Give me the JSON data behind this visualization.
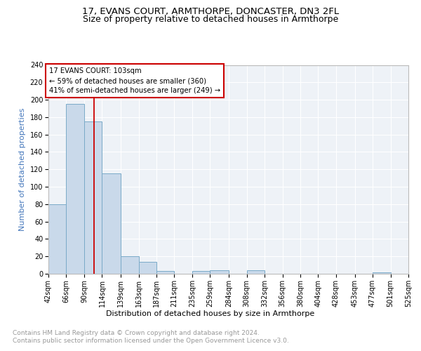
{
  "title": "17, EVANS COURT, ARMTHORPE, DONCASTER, DN3 2FL",
  "subtitle": "Size of property relative to detached houses in Armthorpe",
  "xlabel": "Distribution of detached houses by size in Armthorpe",
  "ylabel": "Number of detached properties",
  "property_size": 103,
  "bin_labels": [
    "42sqm",
    "66sqm",
    "90sqm",
    "114sqm",
    "139sqm",
    "163sqm",
    "187sqm",
    "211sqm",
    "235sqm",
    "259sqm",
    "284sqm",
    "308sqm",
    "332sqm",
    "356sqm",
    "380sqm",
    "404sqm",
    "428sqm",
    "453sqm",
    "477sqm",
    "501sqm",
    "525sqm"
  ],
  "bin_edges": [
    42,
    66,
    90,
    114,
    139,
    163,
    187,
    211,
    235,
    259,
    284,
    308,
    332,
    356,
    380,
    404,
    428,
    453,
    477,
    501,
    525
  ],
  "bar_heights": [
    80,
    195,
    175,
    115,
    20,
    14,
    3,
    0,
    3,
    4,
    0,
    4,
    0,
    0,
    0,
    0,
    0,
    0,
    2,
    0
  ],
  "bar_color": "#c9d9ea",
  "bar_edge_color": "#7aaac8",
  "annotation_title": "17 EVANS COURT: 103sqm",
  "annotation_line1": "← 59% of detached houses are smaller (360)",
  "annotation_line2": "41% of semi-detached houses are larger (249) →",
  "annotation_box_color": "#cc0000",
  "red_line_x": 103,
  "ylim": [
    0,
    240
  ],
  "yticks": [
    0,
    20,
    40,
    60,
    80,
    100,
    120,
    140,
    160,
    180,
    200,
    220,
    240
  ],
  "background_color": "#eef2f7",
  "grid_color": "#ffffff",
  "footer_line1": "Contains HM Land Registry data © Crown copyright and database right 2024.",
  "footer_line2": "Contains public sector information licensed under the Open Government Licence v3.0.",
  "title_fontsize": 9.5,
  "subtitle_fontsize": 9,
  "axis_label_fontsize": 8,
  "tick_fontsize": 7,
  "footer_fontsize": 6.5,
  "ylabel_color": "#4477bb",
  "spine_color": "#bbbbbb"
}
